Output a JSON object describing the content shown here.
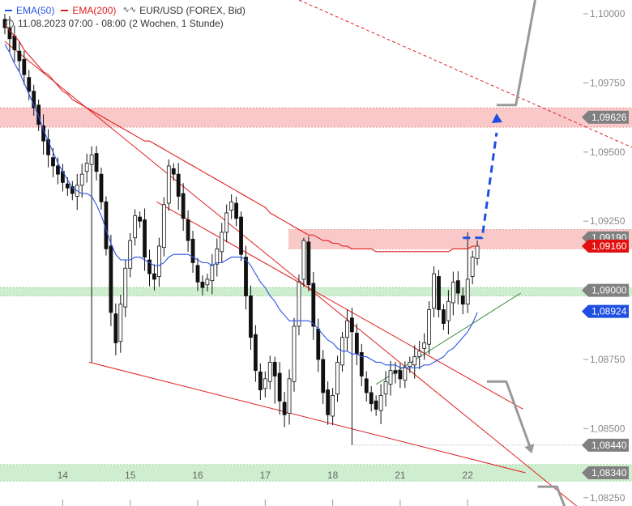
{
  "legend": {
    "ema50_label": "EMA(50)",
    "ema200_label": "EMA(200)",
    "instrument": "EUR/USD (FOREX, Bid)",
    "wave_icon": "wave-icon",
    "date_range": "11.08.2023 07:00 - 08:00",
    "period": "(2 Wochen, 1 Stunde)"
  },
  "colors": {
    "ema50": "#2a55e6",
    "ema200": "#e01c1c",
    "candle": "#111111",
    "resistance_band": "#f7b7b7",
    "support_band": "#bfe8bf",
    "trendline_red": "#e02020",
    "trendline_green": "#3a8a3a",
    "projection_blue": "#1f4fe0",
    "projection_gray": "#999999",
    "label_gray": "#808080",
    "label_red": "#e01010",
    "label_blue": "#1f4fe0"
  },
  "chart_data": {
    "type": "candlestick",
    "ylim": [
      1.0822,
      1.1005
    ],
    "y_ticks": [
      "1,10000",
      "1,09750",
      "1,09500",
      "1,09250",
      "1,08750",
      "1,08500",
      "1,08250"
    ],
    "y_tick_values": [
      1.1,
      1.0975,
      1.095,
      1.0925,
      1.0875,
      1.085,
      1.0825
    ],
    "x_ticks": [
      "14",
      "15",
      "16",
      "17",
      "18",
      "21",
      "22"
    ],
    "x_tick_index": [
      12,
      26,
      40,
      54,
      68,
      82,
      96
    ],
    "price_labels": [
      {
        "text": "1,09626",
        "value": 1.09626,
        "style": "gray"
      },
      {
        "text": "1,09190",
        "value": 1.0919,
        "style": "gray"
      },
      {
        "text": "1,09160",
        "value": 1.0916,
        "style": "red"
      },
      {
        "text": "1,09000",
        "value": 1.09,
        "style": "gray"
      },
      {
        "text": "1,08924",
        "value": 1.08924,
        "style": "blue"
      },
      {
        "text": "1,08440",
        "value": 1.0844,
        "style": "gray"
      },
      {
        "text": "1,08340",
        "value": 1.0834,
        "style": "gray"
      }
    ],
    "bands": [
      {
        "low": 1.0959,
        "high": 1.0966,
        "kind": "resistance"
      },
      {
        "low": 1.0915,
        "high": 1.0922,
        "kind": "resistance"
      },
      {
        "low": 1.0898,
        "high": 1.0901,
        "kind": "support"
      },
      {
        "low": 1.0831,
        "high": 1.0837,
        "kind": "support"
      }
    ],
    "closes": [
      1.0995,
      1.0991,
      1.0987,
      1.0983,
      1.0978,
      1.0972,
      1.0966,
      1.096,
      1.0954,
      1.0949,
      1.0945,
      1.0942,
      1.0939,
      1.0937,
      1.0935,
      1.0938,
      1.0942,
      1.0946,
      1.0949,
      1.0943,
      1.0932,
      1.0915,
      1.0892,
      1.0881,
      1.0895,
      1.0908,
      1.0918,
      1.0927,
      1.0925,
      1.0912,
      1.0906,
      1.0904,
      1.0916,
      1.0931,
      1.0945,
      1.0942,
      1.0934,
      1.0926,
      1.0918,
      1.091,
      1.0903,
      1.0901,
      1.0904,
      1.0909,
      1.0915,
      1.0921,
      1.0928,
      1.0932,
      1.0926,
      1.0913,
      1.0898,
      1.0883,
      1.0871,
      1.0864,
      1.0868,
      1.0874,
      1.0869,
      1.086,
      1.0855,
      1.0868,
      1.0887,
      1.0903,
      1.0918,
      1.0902,
      1.0887,
      1.0875,
      1.0863,
      1.0855,
      1.0862,
      1.0874,
      1.0883,
      1.0889,
      1.0885,
      1.0877,
      1.0869,
      1.0863,
      1.0859,
      1.0857,
      1.0862,
      1.0867,
      1.0871,
      1.087,
      1.0868,
      1.0872,
      1.0874,
      1.0876,
      1.0878,
      1.0881,
      1.0893,
      1.0906,
      1.0893,
      1.0888,
      1.0896,
      1.0903,
      1.0899,
      1.0895,
      1.0904,
      1.0912,
      1.0916
    ],
    "ema50": [
      1.0989,
      1.0986,
      1.0982,
      1.0979,
      1.0975,
      1.0971,
      1.0967,
      1.0963,
      1.0958,
      1.0954,
      1.095,
      1.0946,
      1.0943,
      1.094,
      1.0937,
      1.0936,
      1.0935,
      1.0935,
      1.0934,
      1.0931,
      1.0927,
      1.0922,
      1.0917,
      1.0913,
      1.0911,
      1.0911,
      1.0911,
      1.0912,
      1.0912,
      1.0911,
      1.091,
      1.0909,
      1.0909,
      1.091,
      1.0912,
      1.0913,
      1.0913,
      1.0913,
      1.0913,
      1.0912,
      1.0911,
      1.091,
      1.091,
      1.0909,
      1.091,
      1.091,
      1.0911,
      1.0912,
      1.0912,
      1.0912,
      1.0911,
      1.0909,
      1.0906,
      1.0903,
      1.0901,
      1.0898,
      1.0896,
      1.0893,
      1.0891,
      1.0889,
      1.0889,
      1.0889,
      1.0889,
      1.0889,
      1.0888,
      1.0886,
      1.0884,
      1.0882,
      1.0881,
      1.0879,
      1.0878,
      1.0878,
      1.0877,
      1.0877,
      1.0876,
      1.0876,
      1.0875,
      1.0874,
      1.0874,
      1.0873,
      1.0873,
      1.0873,
      1.0872,
      1.0872,
      1.0872,
      1.0872,
      1.0872,
      1.0873,
      1.0873,
      1.0874,
      1.0875,
      1.0876,
      1.0878,
      1.0879,
      1.0881,
      1.0883,
      1.0885,
      1.0888,
      1.0892
    ],
    "ema200": [
      1.0996,
      1.0994,
      1.0992,
      1.099,
      1.0987,
      1.0985,
      1.0983,
      1.0981,
      1.0979,
      1.0978,
      1.0976,
      1.0974,
      1.0972,
      1.0971,
      1.0969,
      1.0968,
      1.0967,
      1.0966,
      1.0965,
      1.0964,
      1.0963,
      1.0962,
      1.0961,
      1.096,
      1.0959,
      1.0958,
      1.0957,
      1.0956,
      1.0955,
      1.0954,
      1.0954,
      1.0953,
      1.0952,
      1.0951,
      1.095,
      1.0949,
      1.0948,
      1.0947,
      1.0946,
      1.0945,
      1.0944,
      1.0943,
      1.0942,
      1.0941,
      1.094,
      1.0939,
      1.0938,
      1.0937,
      1.0936,
      1.0935,
      1.0934,
      1.0933,
      1.0932,
      1.0931,
      1.093,
      1.0928,
      1.0927,
      1.0926,
      1.0925,
      1.0924,
      1.0923,
      1.0922,
      1.0921,
      1.092,
      1.092,
      1.0919,
      1.0918,
      1.0918,
      1.0917,
      1.0917,
      1.0916,
      1.0916,
      1.0915,
      1.0915,
      1.0915,
      1.0915,
      1.0915,
      1.0914,
      1.0914,
      1.0914,
      1.0914,
      1.0914,
      1.0914,
      1.0914,
      1.0914,
      1.0914,
      1.0914,
      1.0914,
      1.0914,
      1.0914,
      1.0914,
      1.0914,
      1.0914,
      1.0915,
      1.0915,
      1.0915,
      1.0915,
      1.0916,
      1.0916
    ]
  }
}
